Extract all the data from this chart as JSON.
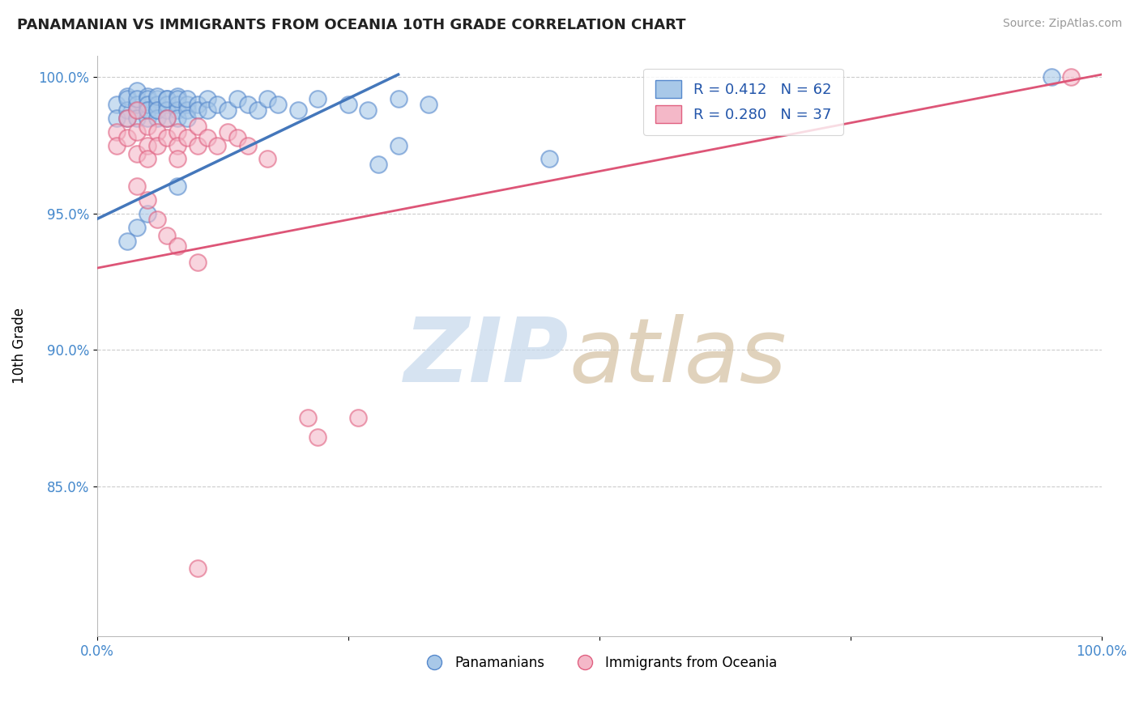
{
  "title": "PANAMANIAN VS IMMIGRANTS FROM OCEANIA 10TH GRADE CORRELATION CHART",
  "source": "Source: ZipAtlas.com",
  "ylabel": "10th Grade",
  "xlim": [
    0.0,
    1.0
  ],
  "ylim": [
    0.795,
    1.008
  ],
  "yticks": [
    0.85,
    0.9,
    0.95,
    1.0
  ],
  "ytick_labels": [
    "85.0%",
    "90.0%",
    "95.0%",
    "100.0%"
  ],
  "blue_R": 0.412,
  "blue_N": 62,
  "pink_R": 0.28,
  "pink_N": 37,
  "blue_color": "#a8c8e8",
  "pink_color": "#f4b8c8",
  "blue_edge_color": "#5588cc",
  "pink_edge_color": "#e06080",
  "blue_line_color": "#4477bb",
  "pink_line_color": "#dd5577",
  "legend_label_blue": "Panamanians",
  "legend_label_pink": "Immigrants from Oceania",
  "blue_line_x": [
    0.0,
    0.3
  ],
  "blue_line_y": [
    0.948,
    1.001
  ],
  "pink_line_x": [
    0.0,
    1.0
  ],
  "pink_line_y": [
    0.93,
    1.001
  ],
  "blue_x": [
    0.02,
    0.02,
    0.03,
    0.03,
    0.03,
    0.03,
    0.04,
    0.04,
    0.04,
    0.04,
    0.04,
    0.05,
    0.05,
    0.05,
    0.05,
    0.05,
    0.05,
    0.06,
    0.06,
    0.06,
    0.06,
    0.06,
    0.06,
    0.07,
    0.07,
    0.07,
    0.07,
    0.07,
    0.08,
    0.08,
    0.08,
    0.08,
    0.08,
    0.09,
    0.09,
    0.09,
    0.09,
    0.1,
    0.1,
    0.11,
    0.11,
    0.12,
    0.13,
    0.14,
    0.15,
    0.16,
    0.17,
    0.18,
    0.2,
    0.22,
    0.25,
    0.27,
    0.3,
    0.33,
    0.05,
    0.08,
    0.04,
    0.03,
    0.3,
    0.28,
    0.45,
    0.95
  ],
  "blue_y": [
    0.99,
    0.985,
    0.993,
    0.988,
    0.985,
    0.992,
    0.995,
    0.988,
    0.99,
    0.985,
    0.992,
    0.993,
    0.988,
    0.992,
    0.985,
    0.99,
    0.988,
    0.992,
    0.988,
    0.99,
    0.985,
    0.993,
    0.988,
    0.992,
    0.99,
    0.988,
    0.985,
    0.992,
    0.993,
    0.99,
    0.988,
    0.985,
    0.992,
    0.99,
    0.988,
    0.985,
    0.992,
    0.99,
    0.988,
    0.992,
    0.988,
    0.99,
    0.988,
    0.992,
    0.99,
    0.988,
    0.992,
    0.99,
    0.988,
    0.992,
    0.99,
    0.988,
    0.992,
    0.99,
    0.95,
    0.96,
    0.945,
    0.94,
    0.975,
    0.968,
    0.97,
    1.0
  ],
  "pink_x": [
    0.02,
    0.02,
    0.03,
    0.03,
    0.04,
    0.04,
    0.04,
    0.05,
    0.05,
    0.05,
    0.06,
    0.06,
    0.07,
    0.07,
    0.08,
    0.08,
    0.08,
    0.09,
    0.1,
    0.1,
    0.11,
    0.12,
    0.13,
    0.14,
    0.15,
    0.17,
    0.21,
    0.22,
    0.04,
    0.05,
    0.06,
    0.07,
    0.08,
    0.1,
    0.26,
    0.1,
    0.97
  ],
  "pink_y": [
    0.98,
    0.975,
    0.985,
    0.978,
    0.988,
    0.98,
    0.972,
    0.982,
    0.975,
    0.97,
    0.98,
    0.975,
    0.985,
    0.978,
    0.98,
    0.975,
    0.97,
    0.978,
    0.982,
    0.975,
    0.978,
    0.975,
    0.98,
    0.978,
    0.975,
    0.97,
    0.875,
    0.868,
    0.96,
    0.955,
    0.948,
    0.942,
    0.938,
    0.932,
    0.875,
    0.82,
    1.0
  ]
}
